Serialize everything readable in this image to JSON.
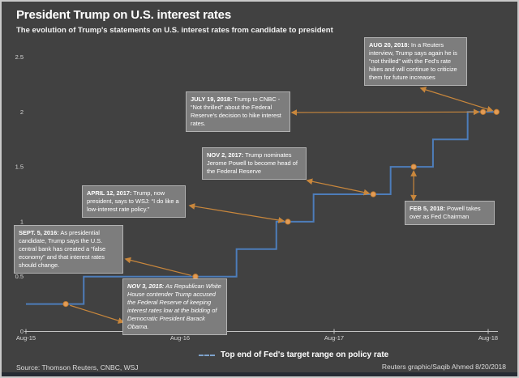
{
  "header": {
    "title": "President Trump on U.S. interest rates",
    "subtitle": "The evolution of Trump's statements on U.S. interest rates from candidate to president"
  },
  "legend": {
    "label": "Top end of Fed's target range on policy rate"
  },
  "footer": {
    "source": "Source: Thomson Reuters, CNBC, WSJ",
    "credit": "Reuters graphic/Saqib Ahmed 8/20/2018"
  },
  "colors": {
    "background": "#414141",
    "line_blue": "#4d7dba",
    "accent_orange": "#c9873c",
    "dot_fill": "#e29b55",
    "dot_stroke": "#bf7a2e",
    "box_bg": "#7d7d7d",
    "box_border": "#b2b2b2",
    "axis": "#c4c4c4",
    "tick_text": "#d6d6d6",
    "text": "#ffffff"
  },
  "chart_data": {
    "type": "line",
    "subtype": "step",
    "title": "President Trump on U.S. interest rates",
    "xlabel": "",
    "ylabel": "Top end of Fed's target range on policy rate (%)",
    "ylim": [
      0,
      2.5
    ],
    "x_range": [
      "Aug-15",
      "Aug-18"
    ],
    "grid": false,
    "legend_position": "bottom",
    "y_ticks": [
      {
        "label": "0",
        "value": 0
      },
      {
        "label": "0.5",
        "value": 0.5
      },
      {
        "label": "1",
        "value": 1
      },
      {
        "label": "1.5",
        "value": 1.5
      },
      {
        "label": "2",
        "value": 2
      },
      {
        "label": "2.5",
        "value": 2.5
      }
    ],
    "x_ticks": [
      {
        "label": "Aug-15",
        "month": 0
      },
      {
        "label": "Aug-16",
        "month": 12
      },
      {
        "label": "Aug-17",
        "month": 24
      },
      {
        "label": "Aug-18",
        "month": 36
      }
    ],
    "step_line": {
      "name": "Top end of Fed's target range on policy rate",
      "start": {
        "month": 0,
        "rate": 0.25
      },
      "changes": [
        {
          "date": "Dec-15",
          "month": 4.5,
          "rate": 0.5
        },
        {
          "date": "Dec-16",
          "month": 16.4,
          "rate": 0.75
        },
        {
          "date": "Mar-17",
          "month": 19.5,
          "rate": 1.0
        },
        {
          "date": "Jun-17",
          "month": 22.4,
          "rate": 1.25
        },
        {
          "date": "Dec-17",
          "month": 28.4,
          "rate": 1.5
        },
        {
          "date": "Mar-18",
          "month": 31.7,
          "rate": 1.75
        },
        {
          "date": "Jun-18",
          "month": 34.4,
          "rate": 2.0
        }
      ],
      "end_month": 36.7
    },
    "events": [
      {
        "id": "nov3-2015",
        "date_label": "NOV 3, 2015:",
        "text": " As Republican White House contender Trump accused the Federal Reserve of keeping interest rates low at the bidding of Democratic President Barack Obama.",
        "month": 3.1,
        "rate": 0.25
      },
      {
        "id": "sept5-2016",
        "date_label": "SEPT. 5, 2016:",
        "text": " As presidential candidate, Trump says the U.S. central bank has created a “false economy” and that interest rates should change.",
        "month": 13.2,
        "rate": 0.5
      },
      {
        "id": "april12-2017",
        "date_label": "APRIL 12, 2017:",
        "text": " Trump, now president, says to WSJ: “I do like a low-interest rate policy.”",
        "month": 20.4,
        "rate": 1.0
      },
      {
        "id": "nov2-2017",
        "date_label": "NOV 2, 2017:",
        "text": " Trump nominates Jerome Powell to become head of the Federal Reserve",
        "month": 27.05,
        "rate": 1.25
      },
      {
        "id": "feb5-2018",
        "date_label": "FEB 5, 2018:",
        "text": " Powell takes over as Fed Chairman",
        "month": 30.2,
        "rate": 1.5
      },
      {
        "id": "july19-2018",
        "date_label": "JULY 19, 2018:",
        "text": " Trump to CNBC - “Not thrilled” about the Federal Reserve's decision to hike interest rates.",
        "month": 35.6,
        "rate": 2.0
      },
      {
        "id": "aug20-2018",
        "date_label": "AUG 20, 2018:",
        "text": " In a Reuters interview, Trump says again he is “not thrilled” with the Fed's rate hikes and will continue to criticize them for future increases",
        "month": 36.65,
        "rate": 2.0
      }
    ]
  }
}
